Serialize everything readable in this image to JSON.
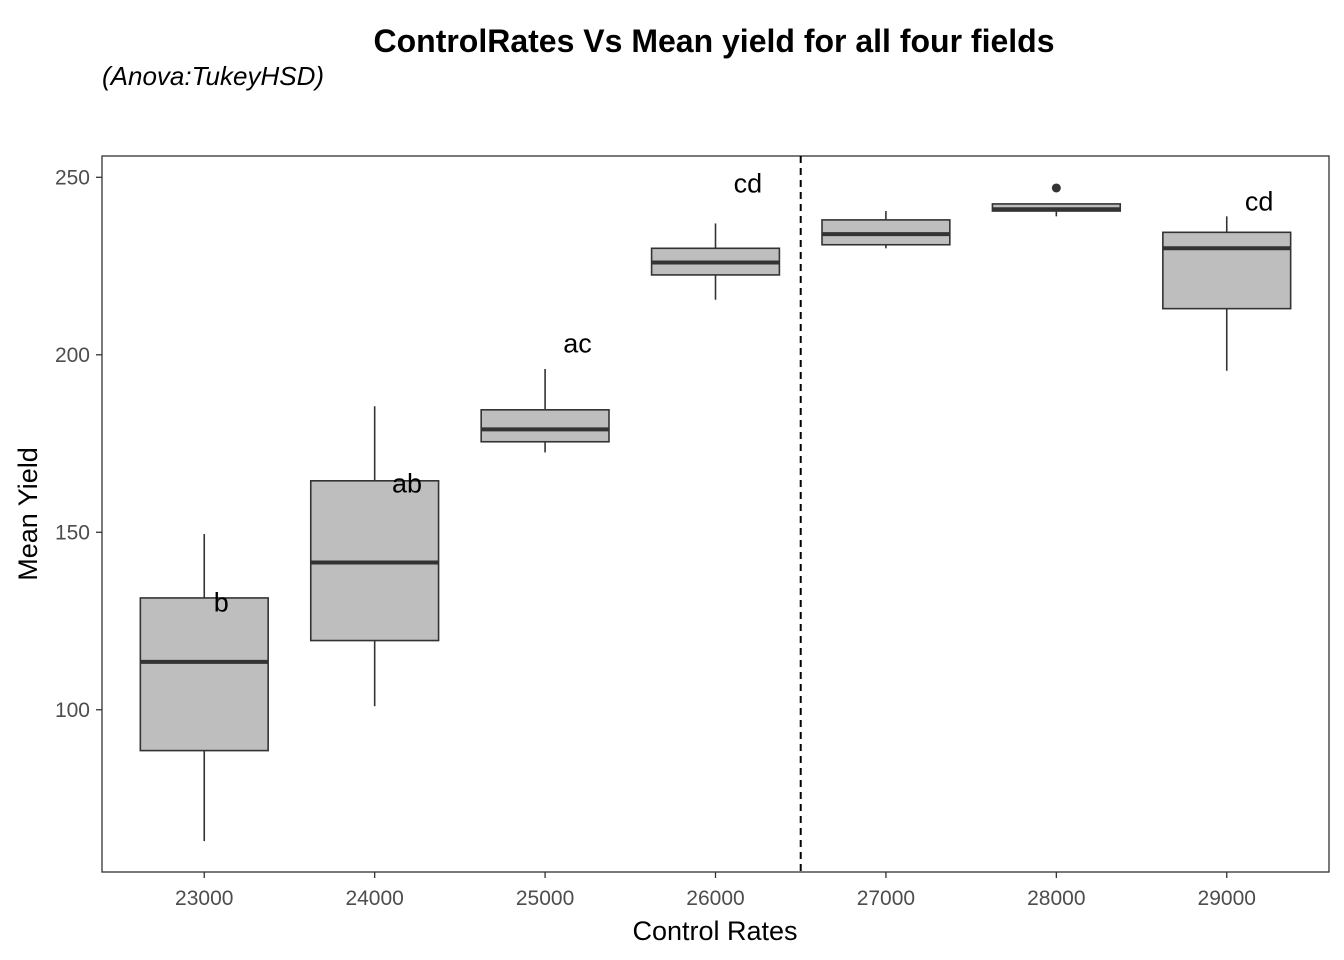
{
  "chart_data": {
    "type": "boxplot",
    "title": "ControlRates Vs Mean yield for all four fields",
    "subtitle": "(Anova:TukeyHSD)",
    "xlabel": "Control Rates",
    "ylabel": "Mean Yield",
    "categories": [
      "23000",
      "24000",
      "25000",
      "26000",
      "27000",
      "28000",
      "29000"
    ],
    "yticks": [
      100,
      150,
      200,
      250
    ],
    "ylim": [
      54.3,
      256
    ],
    "reference_line_x": 26500,
    "grid": false,
    "colors": {
      "box_fill": "#bebebe",
      "box_stroke": "#333333",
      "line": "#000000"
    },
    "boxes": [
      {
        "x": "23000",
        "whisker_low": 63,
        "q1": 88.5,
        "median": 113.5,
        "q3": 131.5,
        "whisker_high": 149.5,
        "outliers": []
      },
      {
        "x": "24000",
        "whisker_low": 101,
        "q1": 119.5,
        "median": 141.5,
        "q3": 164.5,
        "whisker_high": 185.5,
        "outliers": []
      },
      {
        "x": "25000",
        "whisker_low": 172.5,
        "q1": 175.5,
        "median": 179,
        "q3": 184.5,
        "whisker_high": 196,
        "outliers": []
      },
      {
        "x": "26000",
        "whisker_low": 215.5,
        "q1": 222.5,
        "median": 226,
        "q3": 230,
        "whisker_high": 237,
        "outliers": []
      },
      {
        "x": "27000",
        "whisker_low": 230,
        "q1": 231,
        "median": 234,
        "q3": 238,
        "whisker_high": 240.5,
        "outliers": []
      },
      {
        "x": "28000",
        "whisker_low": 239,
        "q1": 240.5,
        "median": 241,
        "q3": 242.5,
        "whisker_high": 242.5,
        "outliers": [
          247
        ]
      },
      {
        "x": "29000",
        "whisker_low": 195.5,
        "q1": 213,
        "median": 230,
        "q3": 234.5,
        "whisker_high": 239,
        "outliers": []
      }
    ],
    "annotations": [
      {
        "x": "23000",
        "dx": 0.1,
        "y": 130.5,
        "text": "b"
      },
      {
        "x": "24000",
        "dx": 0.19,
        "y": 164,
        "text": "ab"
      },
      {
        "x": "25000",
        "dx": 0.19,
        "y": 203.5,
        "text": "ac"
      },
      {
        "x": "26000",
        "dx": 0.19,
        "y": 248.5,
        "text": "cd"
      },
      {
        "x": "29000",
        "dx": 0.19,
        "y": 243.5,
        "text": "cd"
      }
    ]
  }
}
